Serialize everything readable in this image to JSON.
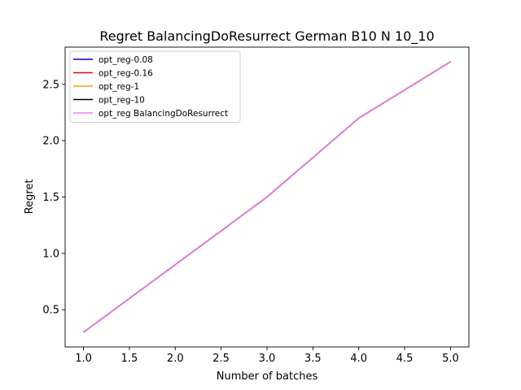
{
  "chart_data": {
    "type": "line",
    "title": "Regret BalancingDoResurrect German B10 N 10_10",
    "xlabel": "Number of batches",
    "ylabel": "Regret",
    "xlim": [
      0.8,
      5.2
    ],
    "ylim": [
      0.17,
      2.83
    ],
    "xticks": [
      1.0,
      1.5,
      2.0,
      2.5,
      3.0,
      3.5,
      4.0,
      4.5,
      5.0
    ],
    "xtick_labels": [
      "1.0",
      "1.5",
      "2.0",
      "2.5",
      "3.0",
      "3.5",
      "4.0",
      "4.5",
      "5.0"
    ],
    "yticks": [
      0.5,
      1.0,
      1.5,
      2.0,
      2.5
    ],
    "ytick_labels": [
      "0.5",
      "1.0",
      "1.5",
      "2.0",
      "2.5"
    ],
    "grid": false,
    "legend": "top-left",
    "x": [
      1,
      2,
      3,
      4,
      5
    ],
    "series": [
      {
        "name": "opt_reg-0.08",
        "color": "#0000cc",
        "values": [
          0.3,
          0.9,
          1.5,
          2.2,
          2.7
        ]
      },
      {
        "name": "opt_reg-0.16",
        "color": "#ee0000",
        "values": [
          0.3,
          0.9,
          1.5,
          2.2,
          2.7
        ]
      },
      {
        "name": "opt_reg-1",
        "color": "#ff9f00",
        "values": [
          0.3,
          0.9,
          1.5,
          2.2,
          2.7
        ]
      },
      {
        "name": "opt_reg-10",
        "color": "#000000",
        "values": [
          0.3,
          0.9,
          1.5,
          2.2,
          2.7
        ]
      },
      {
        "name": "opt_reg BalancingDoResurrect",
        "color": "#ee82ee",
        "values": [
          0.3,
          0.9,
          1.5,
          2.2,
          2.7
        ]
      }
    ]
  }
}
